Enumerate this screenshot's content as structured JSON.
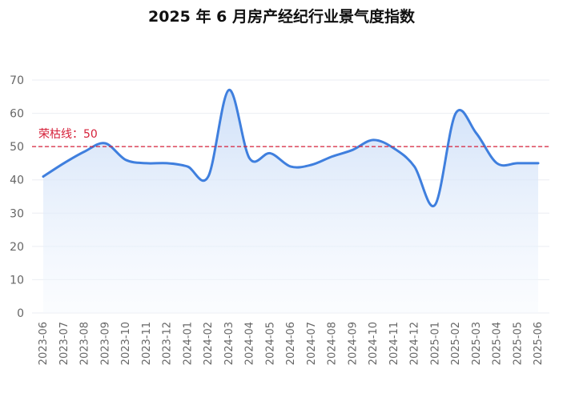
{
  "chart_data": {
    "type": "area",
    "title": "2025 年 6 月房产经纪行业景气度指数",
    "xlabel": "",
    "ylabel": "",
    "ylim": [
      0,
      70
    ],
    "yticks": [
      0,
      10,
      20,
      30,
      40,
      50,
      60,
      70
    ],
    "grid": true,
    "categories": [
      "2023-06",
      "2023-07",
      "2023-08",
      "2023-09",
      "2023-10",
      "2023-11",
      "2023-12",
      "2024-01",
      "2024-02",
      "2024-03",
      "2024-04",
      "2024-05",
      "2024-06",
      "2024-07",
      "2024-08",
      "2024-09",
      "2024-10",
      "2024-11",
      "2024-12",
      "2025-01",
      "2025-02",
      "2025-03",
      "2025-04",
      "2025-05",
      "2025-06"
    ],
    "series": [
      {
        "values": [
          41,
          45,
          48.5,
          51,
          46,
          45,
          45,
          44,
          41,
          67,
          46.5,
          48,
          44,
          44.5,
          47,
          49,
          52,
          49.5,
          44,
          32.5,
          60,
          54,
          45,
          45,
          45
        ]
      }
    ],
    "mark_line": {
      "value": 50,
      "label": "荣枯线：50"
    },
    "colors": {
      "line": "#3f7fde",
      "area_top": "#c9dcf7",
      "area_bottom": "#f4f8fe",
      "mark_line": "#d6213a",
      "grid": "#ebeef3",
      "axis_text": "#666666"
    }
  }
}
